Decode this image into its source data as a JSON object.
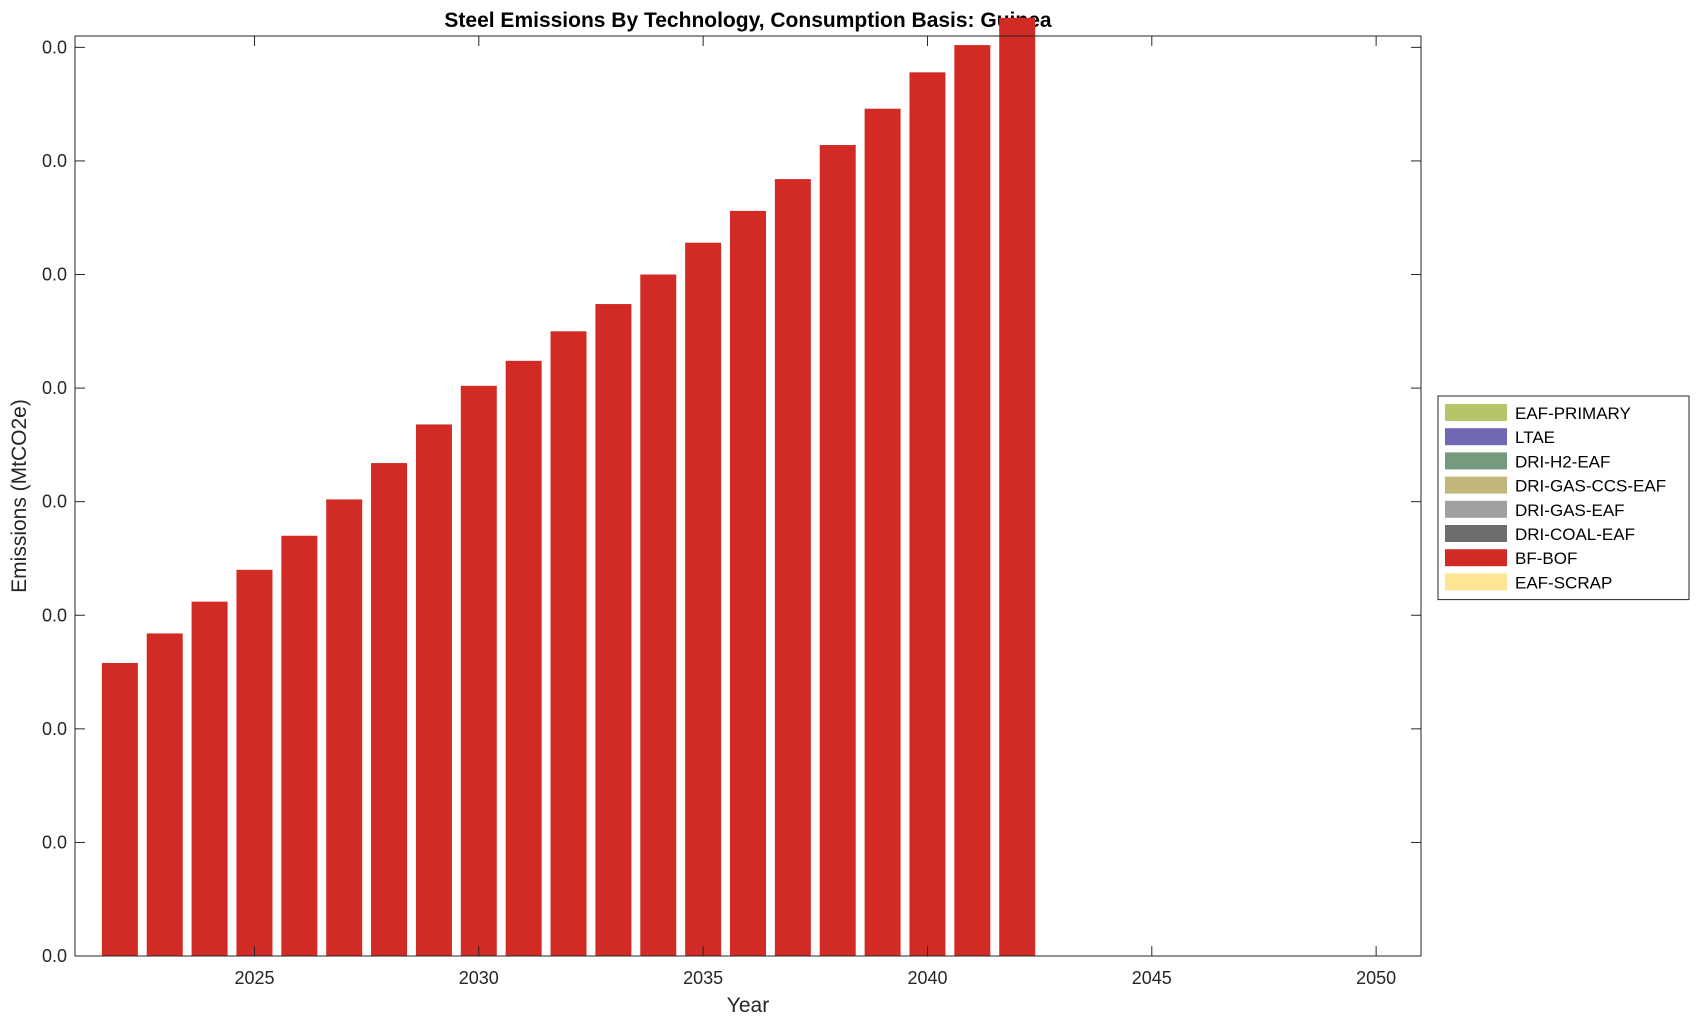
{
  "chart_data": {
    "type": "bar",
    "stacked": true,
    "title": "Steel Emissions By Technology, Consumption Basis: Guinea",
    "xlabel": "Year",
    "ylabel": "Emissions (MtCO2e)",
    "xlim": [
      2021,
      2051
    ],
    "ylim": [
      0,
      0.0405
    ],
    "x_ticks": [
      2025,
      2030,
      2035,
      2040,
      2045,
      2050
    ],
    "y_ticks": [
      0,
      0.005,
      0.01,
      0.015,
      0.02,
      0.025,
      0.03,
      0.035,
      0.04
    ],
    "y_tick_labels": [
      "0.0",
      "0.0",
      "0.0",
      "0.0",
      "0.0",
      "0.0",
      "0.0",
      "0.0",
      "0.0"
    ],
    "legend_position": "outside-right",
    "grid": false,
    "x": [
      2022,
      2023,
      2024,
      2025,
      2026,
      2027,
      2028,
      2029,
      2030,
      2031,
      2032,
      2033,
      2034,
      2035,
      2036,
      2037,
      2038,
      2039,
      2040,
      2041,
      2042
    ],
    "series": [
      {
        "name": "EAF-PRIMARY",
        "color": "#b8c46a",
        "values": [
          0,
          0,
          0,
          0,
          0,
          0,
          0,
          0,
          0,
          0,
          0,
          0,
          0,
          0,
          0,
          0,
          0,
          0,
          0,
          0,
          0
        ]
      },
      {
        "name": "LTAE",
        "color": "#7068b4",
        "values": [
          0,
          0,
          0,
          0,
          0,
          0,
          0,
          0,
          0,
          0,
          0,
          0,
          0,
          0,
          0,
          0,
          0,
          0,
          0,
          0,
          0
        ]
      },
      {
        "name": "DRI-H2-EAF",
        "color": "#769a7e",
        "values": [
          0,
          0,
          0,
          0,
          0,
          0,
          0,
          0,
          0,
          0,
          0,
          0,
          0,
          0,
          0,
          0,
          0,
          0,
          0,
          0,
          0
        ]
      },
      {
        "name": "DRI-GAS-CCS-EAF",
        "color": "#c2b67c",
        "values": [
          0,
          0,
          0,
          0,
          0,
          0,
          0,
          0,
          0,
          0,
          0,
          0,
          0,
          0,
          0,
          0,
          0,
          0,
          0,
          0,
          0
        ]
      },
      {
        "name": "DRI-GAS-EAF",
        "color": "#a0a0a0",
        "values": [
          0,
          0,
          0,
          0,
          0,
          0,
          0,
          0,
          0,
          0,
          0,
          0,
          0,
          0,
          0,
          0,
          0,
          0,
          0,
          0,
          0
        ]
      },
      {
        "name": "DRI-COAL-EAF",
        "color": "#6d6d6d",
        "values": [
          0,
          0,
          0,
          0,
          0,
          0,
          0,
          0,
          0,
          0,
          0,
          0,
          0,
          0,
          0,
          0,
          0,
          0,
          0,
          0,
          0
        ]
      },
      {
        "name": "BF-BOF",
        "color": "#d22b26",
        "values": [
          0.0129,
          0.0142,
          0.0156,
          0.017,
          0.0185,
          0.0201,
          0.0217,
          0.0234,
          0.0251,
          0.0262,
          0.0275,
          0.0287,
          0.03,
          0.0314,
          0.0328,
          0.0342,
          0.0357,
          0.0373,
          0.0389,
          0.0401,
          0.0413
        ]
      },
      {
        "name": "EAF-SCRAP",
        "color": "#fde594",
        "values": [
          0,
          0,
          0,
          0,
          0,
          0,
          0,
          0,
          0,
          0,
          0,
          0,
          0,
          0,
          0,
          0,
          0,
          0,
          0,
          0,
          0
        ]
      }
    ]
  }
}
